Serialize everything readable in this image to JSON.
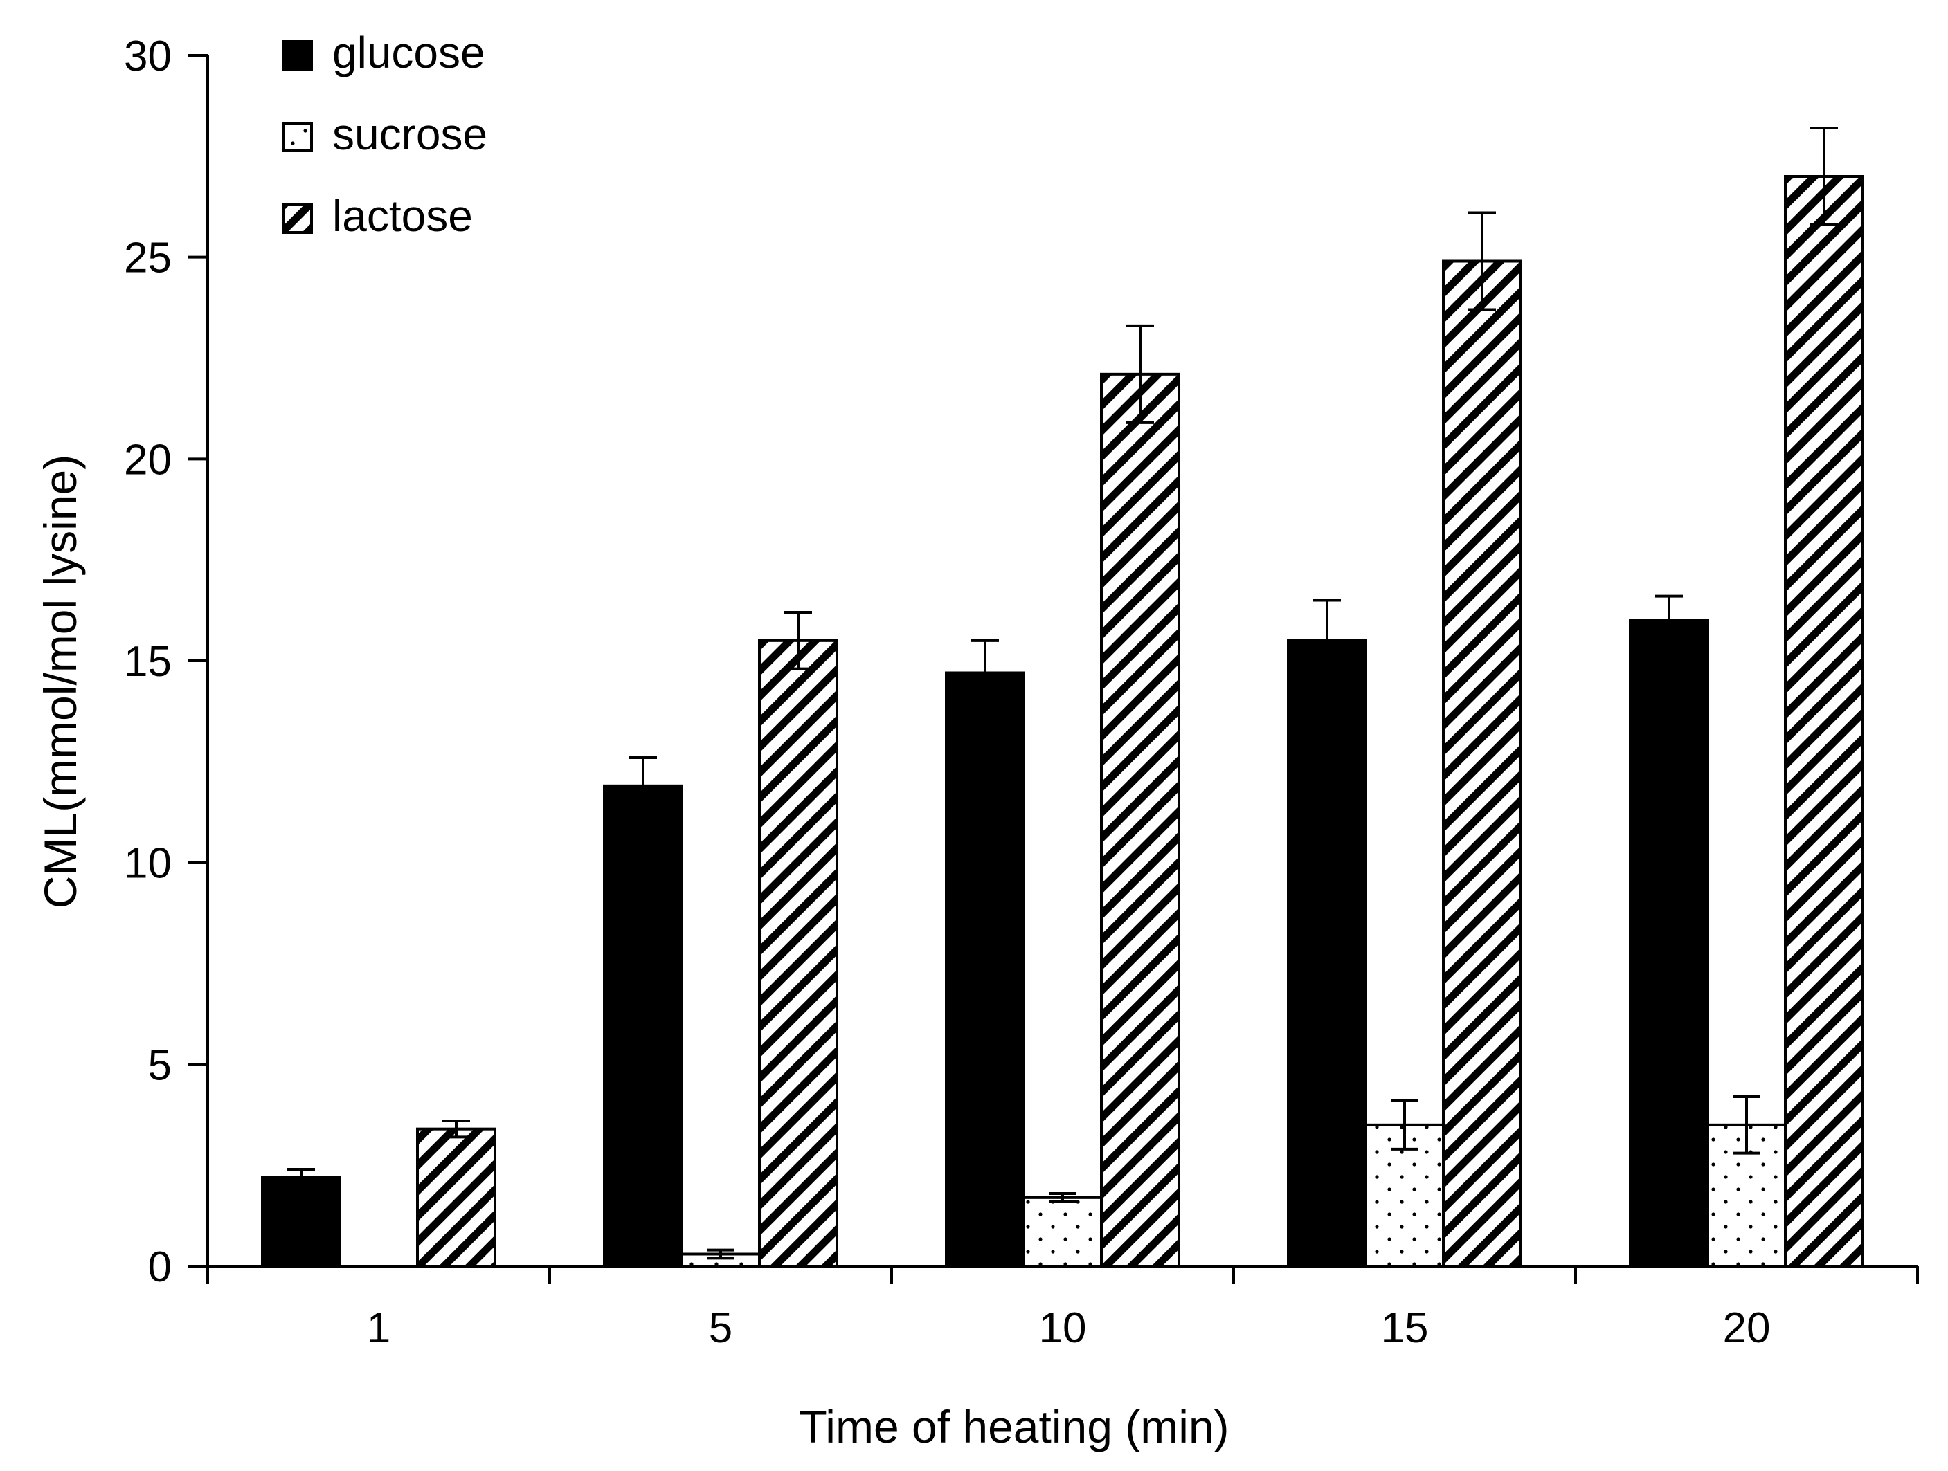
{
  "chart_data": {
    "type": "bar",
    "title": "",
    "xlabel": "Time of heating (min)",
    "ylabel": "CML(mmol/mol lysine)",
    "categories": [
      "1",
      "5",
      "10",
      "15",
      "20"
    ],
    "ylim": [
      0,
      30
    ],
    "yticks": [
      0,
      5,
      10,
      15,
      20,
      25,
      30
    ],
    "grid": false,
    "legend_position": "top-left",
    "series": [
      {
        "name": "glucose",
        "pattern": "solid",
        "values": [
          2.2,
          11.9,
          14.7,
          15.5,
          16.0
        ],
        "errors": [
          0.2,
          0.7,
          0.8,
          1.0,
          0.6
        ]
      },
      {
        "name": "sucrose",
        "pattern": "dots",
        "values": [
          0.0,
          0.3,
          1.7,
          3.5,
          3.5
        ],
        "errors": [
          0.0,
          0.1,
          0.1,
          0.6,
          0.7
        ]
      },
      {
        "name": "lactose",
        "pattern": "diagonal-stripes",
        "values": [
          3.4,
          15.5,
          22.1,
          24.9,
          27.0
        ],
        "errors": [
          0.2,
          0.7,
          1.2,
          1.2,
          1.2
        ]
      }
    ]
  }
}
